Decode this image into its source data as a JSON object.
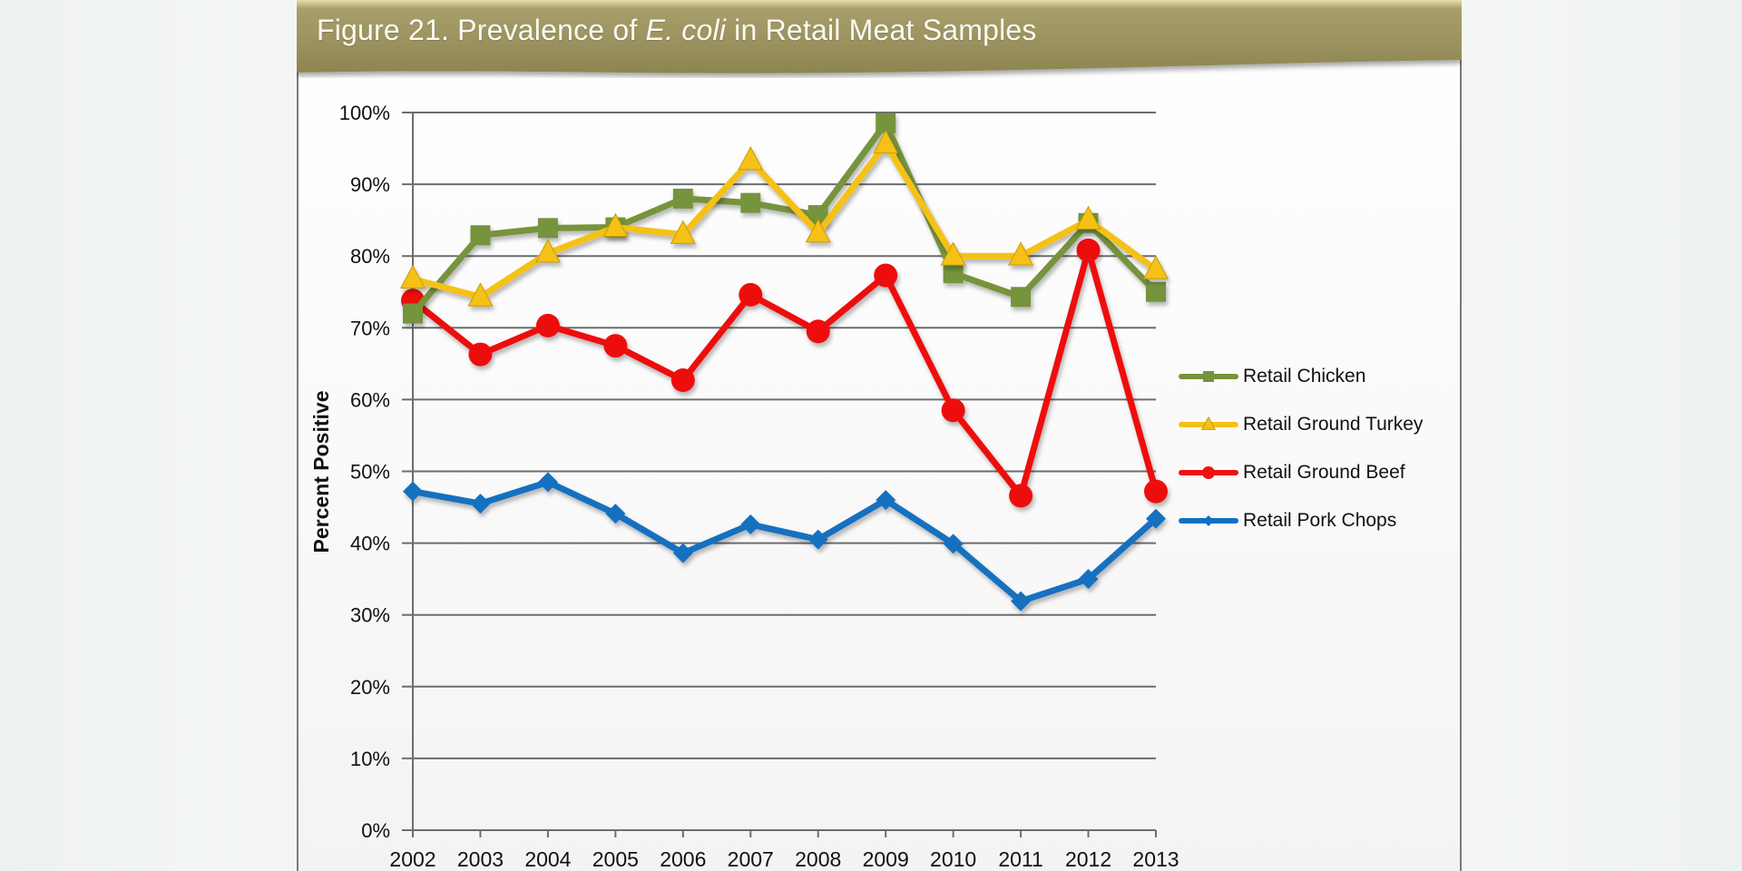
{
  "title": {
    "prefix": "Figure 21. Prevalence of ",
    "italic": "E. coli",
    "suffix": " in Retail Meat Samples"
  },
  "colors": {
    "banner": "#9a9160",
    "chicken": "#76933c",
    "turkey": "#f5c118",
    "beef": "#ee1111",
    "pork": "#1370c0"
  },
  "chart_data": {
    "type": "line",
    "title": "Figure 21. Prevalence of E. coli in Retail Meat Samples",
    "xlabel": "",
    "ylabel": "Percent Positive",
    "x": [
      "2002",
      "2003",
      "2004",
      "2005",
      "2006",
      "2007",
      "2008",
      "2009",
      "2010",
      "2011",
      "2012",
      "2013"
    ],
    "ylim": [
      0,
      100
    ],
    "yticks": [
      "0%",
      "10%",
      "20%",
      "30%",
      "40%",
      "50%",
      "60%",
      "70%",
      "80%",
      "90%",
      "100%"
    ],
    "grid": true,
    "legend_position": "right",
    "series": [
      {
        "name": "Retail Chicken",
        "marker": "square",
        "color": "#76933c",
        "values": [
          72.0,
          82.9,
          83.9,
          84.0,
          88.0,
          87.4,
          85.7,
          98.5,
          77.6,
          74.3,
          84.6,
          75.0
        ]
      },
      {
        "name": "Retail Ground Turkey",
        "marker": "triangle",
        "color": "#f5c118",
        "values": [
          76.8,
          74.3,
          80.4,
          84.0,
          83.0,
          93.3,
          83.2,
          95.6,
          80.0,
          80.0,
          85.0,
          78.1
        ]
      },
      {
        "name": "Retail Ground Beef",
        "marker": "circle",
        "color": "#ee1111",
        "values": [
          73.8,
          66.3,
          70.3,
          67.5,
          62.7,
          74.6,
          69.5,
          77.3,
          58.5,
          46.6,
          80.8,
          47.2
        ]
      },
      {
        "name": "Retail Pork Chops",
        "marker": "diamond",
        "color": "#1370c0",
        "values": [
          47.2,
          45.5,
          48.5,
          44.1,
          38.6,
          42.6,
          40.5,
          46.0,
          39.9,
          31.9,
          35.0,
          43.4
        ]
      }
    ]
  }
}
